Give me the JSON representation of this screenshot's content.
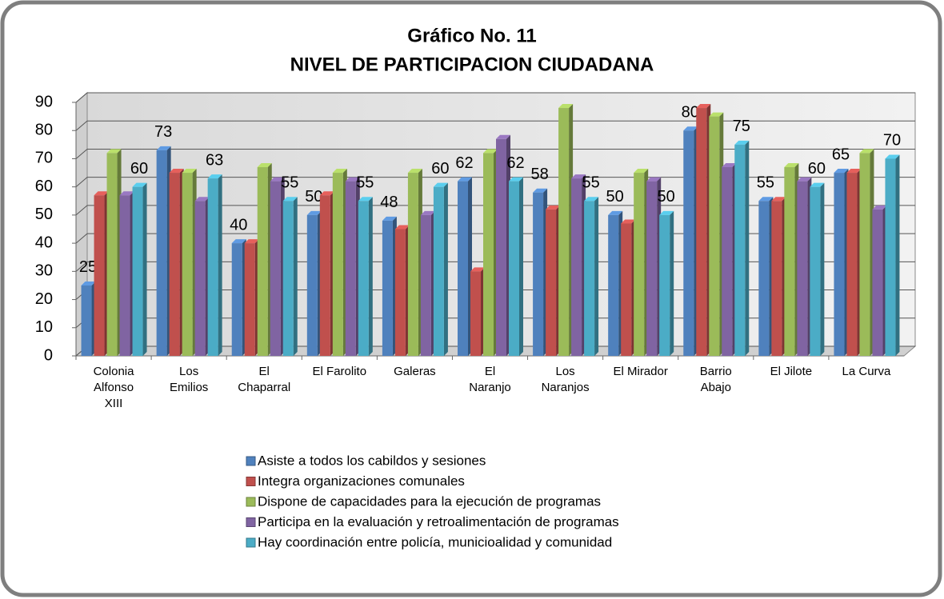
{
  "chart_data": {
    "type": "bar3d",
    "title": "Gráfico No. 11",
    "subtitle": "NIVEL DE PARTICIPACION CIUDADANA",
    "categories": [
      "Colonia Alfonso XIII",
      "Los Emilios",
      "El Chaparral",
      "El Farolito",
      "Galeras",
      "El Naranjo",
      "Los Naranjos",
      "El Mirador",
      "Barrio Abajo",
      "El Jilote",
      "La Curva"
    ],
    "series": [
      {
        "name": "Asiste a todos los cabildos y sesiones",
        "color": "#4f81bd",
        "data_labels": true,
        "values": [
          25,
          73,
          40,
          50,
          48,
          62,
          58,
          50,
          80,
          55,
          65
        ]
      },
      {
        "name": "Integra organizaciones comunales",
        "color": "#c0504d",
        "data_labels": false,
        "values": [
          57,
          65,
          40,
          57,
          45,
          30,
          52,
          47,
          88,
          55,
          65
        ]
      },
      {
        "name": "Dispone de capacidades para la ejecución de programas",
        "color": "#9bbb59",
        "data_labels": false,
        "values": [
          72,
          65,
          67,
          65,
          65,
          72,
          88,
          65,
          85,
          67,
          72
        ]
      },
      {
        "name": "Participa en la evaluación y retroalimentación de programas",
        "color": "#8064a2",
        "data_labels": false,
        "values": [
          57,
          55,
          62,
          62,
          50,
          77,
          63,
          62,
          67,
          62,
          52
        ]
      },
      {
        "name": "Hay coordinación entre policía, municioalidad y comunidad",
        "color": "#4bacc6",
        "data_labels": true,
        "values": [
          60,
          63,
          55,
          55,
          60,
          62,
          55,
          50,
          75,
          60,
          70
        ]
      }
    ],
    "ylim": [
      0,
      90
    ],
    "yticks": [
      0,
      10,
      20,
      30,
      40,
      50,
      60,
      70,
      80,
      90
    ],
    "grid": true
  }
}
